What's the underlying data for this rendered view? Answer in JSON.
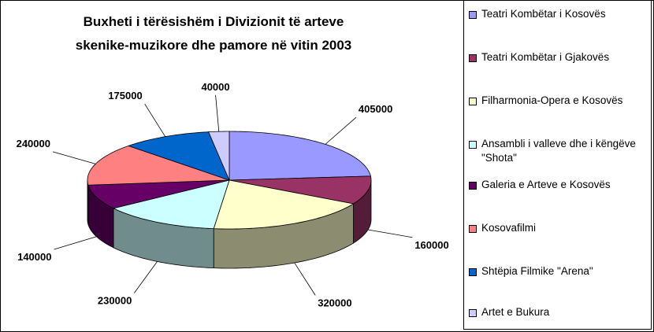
{
  "chart_data": {
    "type": "pie3d",
    "title": [
      "Buxheti i tërësishëm i Divizionit të arteve",
      "skenike-muzikore dhe pamore në vitin 2003"
    ],
    "categories": [
      "Teatri Kombëtar i Kosovës",
      "Teatri Kombëtar i Gjakovës",
      "Filharmonia-Opera e Kosovës",
      "Ansambli i valleve dhe i këngëve \"Shota\"",
      "Galeria e Arteve e Kosovës",
      "Kosovafilmi",
      "Shtëpia Filmike \"Arena\"",
      "Artet e Bukura"
    ],
    "values": [
      405000,
      160000,
      320000,
      230000,
      140000,
      240000,
      175000,
      40000
    ],
    "colors": [
      "#9999ff",
      "#993366",
      "#ffffcc",
      "#ccffff",
      "#660066",
      "#ff8080",
      "#0066cc",
      "#ccccff"
    ],
    "legend": "right"
  }
}
